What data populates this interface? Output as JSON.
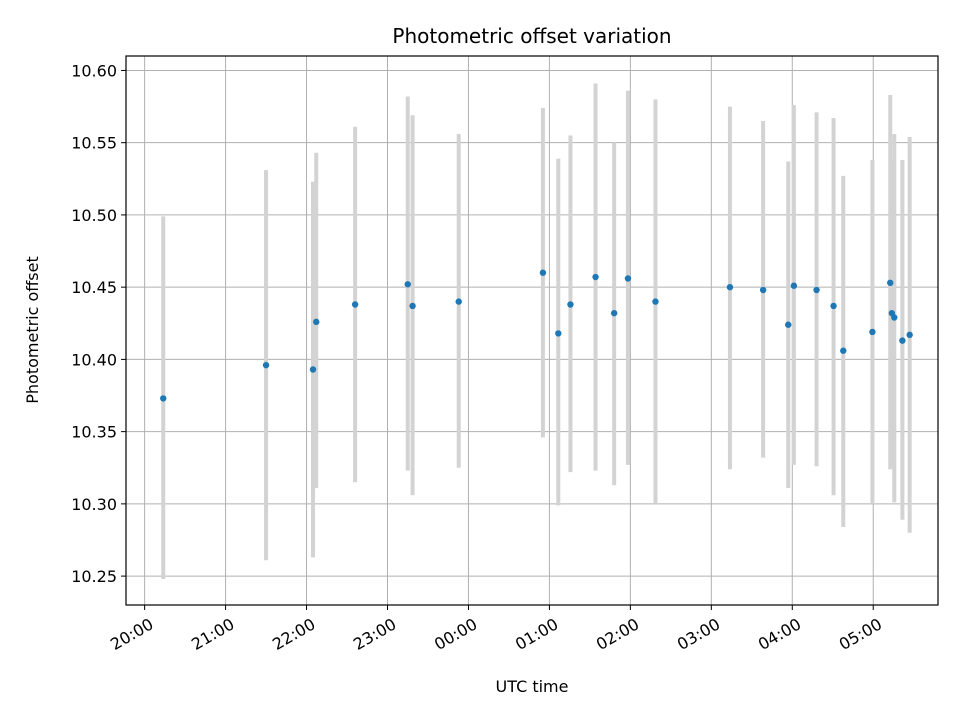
{
  "chart_data": {
    "type": "scatter",
    "title": "Photometric offset variation",
    "xlabel": "UTC time",
    "ylabel": "Photometric offset",
    "x_unit": "hours since 20:00 UTC",
    "xlim": [
      -0.23,
      9.8
    ],
    "ylim": [
      10.23,
      10.61
    ],
    "xticks": [
      {
        "label": "20:00",
        "x": 0
      },
      {
        "label": "21:00",
        "x": 1
      },
      {
        "label": "22:00",
        "x": 2
      },
      {
        "label": "23:00",
        "x": 3
      },
      {
        "label": "00:00",
        "x": 4
      },
      {
        "label": "01:00",
        "x": 5
      },
      {
        "label": "02:00",
        "x": 6
      },
      {
        "label": "03:00",
        "x": 7
      },
      {
        "label": "04:00",
        "x": 8
      },
      {
        "label": "05:00",
        "x": 9
      }
    ],
    "yticks": [
      "10.25",
      "10.30",
      "10.35",
      "10.40",
      "10.45",
      "10.50",
      "10.55",
      "10.60"
    ],
    "grid": true,
    "point_color": "#1f77b4",
    "errorbar_color": "#d3d3d3",
    "points": [
      {
        "x": 0.23,
        "y": 10.373,
        "ylo": 10.248,
        "yhi": 10.499
      },
      {
        "x": 1.5,
        "y": 10.396,
        "ylo": 10.261,
        "yhi": 10.531
      },
      {
        "x": 2.08,
        "y": 10.393,
        "ylo": 10.263,
        "yhi": 10.523
      },
      {
        "x": 2.12,
        "y": 10.426,
        "ylo": 10.311,
        "yhi": 10.543
      },
      {
        "x": 2.6,
        "y": 10.438,
        "ylo": 10.315,
        "yhi": 10.561
      },
      {
        "x": 3.25,
        "y": 10.452,
        "ylo": 10.323,
        "yhi": 10.582
      },
      {
        "x": 3.31,
        "y": 10.437,
        "ylo": 10.306,
        "yhi": 10.569
      },
      {
        "x": 3.88,
        "y": 10.44,
        "ylo": 10.325,
        "yhi": 10.556
      },
      {
        "x": 4.92,
        "y": 10.46,
        "ylo": 10.346,
        "yhi": 10.574
      },
      {
        "x": 5.11,
        "y": 10.418,
        "ylo": 10.299,
        "yhi": 10.539
      },
      {
        "x": 5.26,
        "y": 10.438,
        "ylo": 10.322,
        "yhi": 10.555
      },
      {
        "x": 5.57,
        "y": 10.457,
        "ylo": 10.323,
        "yhi": 10.591
      },
      {
        "x": 5.8,
        "y": 10.432,
        "ylo": 10.313,
        "yhi": 10.55
      },
      {
        "x": 5.97,
        "y": 10.456,
        "ylo": 10.327,
        "yhi": 10.586
      },
      {
        "x": 6.31,
        "y": 10.44,
        "ylo": 10.3,
        "yhi": 10.58
      },
      {
        "x": 7.23,
        "y": 10.45,
        "ylo": 10.324,
        "yhi": 10.575
      },
      {
        "x": 7.64,
        "y": 10.448,
        "ylo": 10.332,
        "yhi": 10.565
      },
      {
        "x": 7.95,
        "y": 10.424,
        "ylo": 10.311,
        "yhi": 10.537
      },
      {
        "x": 8.02,
        "y": 10.451,
        "ylo": 10.327,
        "yhi": 10.576
      },
      {
        "x": 8.3,
        "y": 10.448,
        "ylo": 10.326,
        "yhi": 10.571
      },
      {
        "x": 8.51,
        "y": 10.437,
        "ylo": 10.306,
        "yhi": 10.567
      },
      {
        "x": 8.63,
        "y": 10.406,
        "ylo": 10.284,
        "yhi": 10.527
      },
      {
        "x": 8.99,
        "y": 10.419,
        "ylo": 10.3,
        "yhi": 10.538
      },
      {
        "x": 9.21,
        "y": 10.453,
        "ylo": 10.324,
        "yhi": 10.583
      },
      {
        "x": 9.23,
        "y": 10.432,
        "ylo": 10.326,
        "yhi": 10.537
      },
      {
        "x": 9.26,
        "y": 10.429,
        "ylo": 10.301,
        "yhi": 10.556
      },
      {
        "x": 9.36,
        "y": 10.413,
        "ylo": 10.289,
        "yhi": 10.538
      },
      {
        "x": 9.45,
        "y": 10.417,
        "ylo": 10.28,
        "yhi": 10.554
      }
    ]
  }
}
